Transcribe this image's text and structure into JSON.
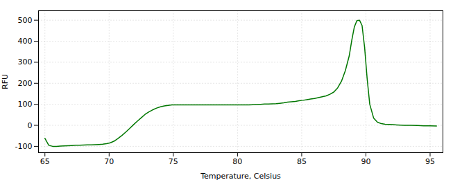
{
  "chart_data": {
    "type": "line",
    "xlabel": "Temperature, Celsius",
    "ylabel": "RFU",
    "xlim": [
      64.5,
      96.0
    ],
    "ylim": [
      -130,
      545
    ],
    "xticks": [
      65,
      70,
      75,
      80,
      85,
      90,
      95
    ],
    "yticks": [
      -100,
      0,
      100,
      200,
      300,
      400,
      500
    ],
    "grid": true,
    "color": "#007700",
    "x": [
      65.0,
      65.3,
      65.6,
      65.9,
      66.2,
      66.5,
      66.8,
      67.1,
      67.4,
      67.7,
      68.0,
      68.3,
      68.6,
      68.9,
      69.2,
      69.5,
      69.8,
      70.1,
      70.4,
      70.7,
      71.0,
      71.3,
      71.6,
      71.9,
      72.2,
      72.5,
      72.8,
      73.1,
      73.4,
      73.7,
      74.0,
      74.3,
      74.6,
      74.9,
      75.2,
      75.5,
      75.8,
      76.1,
      76.4,
      76.7,
      77.0,
      77.3,
      77.6,
      77.9,
      78.2,
      78.5,
      78.8,
      79.1,
      79.4,
      79.7,
      80.0,
      80.3,
      80.6,
      80.9,
      81.2,
      81.5,
      81.8,
      82.1,
      82.4,
      82.7,
      83.0,
      83.3,
      83.6,
      83.9,
      84.2,
      84.5,
      84.8,
      85.1,
      85.4,
      85.7,
      86.0,
      86.3,
      86.6,
      86.9,
      87.2,
      87.5,
      87.8,
      88.1,
      88.4,
      88.7,
      88.9,
      89.1,
      89.3,
      89.5,
      89.7,
      89.9,
      90.1,
      90.3,
      90.6,
      90.9,
      91.2,
      91.5,
      91.8,
      92.1,
      92.4,
      92.7,
      93.0,
      93.5,
      94.0,
      94.5,
      95.0,
      95.5
    ],
    "values": [
      -62,
      -95,
      -100,
      -100,
      -99,
      -98,
      -97,
      -96,
      -95,
      -95,
      -94,
      -93,
      -93,
      -92,
      -91,
      -90,
      -87,
      -83,
      -75,
      -62,
      -48,
      -32,
      -15,
      3,
      20,
      36,
      52,
      64,
      74,
      82,
      88,
      92,
      95,
      97,
      97,
      97,
      97,
      97,
      97,
      97,
      97,
      97,
      97,
      97,
      97,
      97,
      97,
      97,
      97,
      97,
      97,
      97,
      97,
      97,
      98,
      99,
      100,
      101,
      101,
      102,
      103,
      105,
      107,
      110,
      112,
      114,
      117,
      119,
      122,
      125,
      128,
      132,
      136,
      140,
      148,
      158,
      178,
      210,
      260,
      330,
      405,
      468,
      498,
      500,
      475,
      370,
      220,
      100,
      35,
      15,
      8,
      5,
      4,
      3,
      2,
      1,
      0,
      0,
      -1,
      -2,
      -2,
      -3
    ]
  }
}
